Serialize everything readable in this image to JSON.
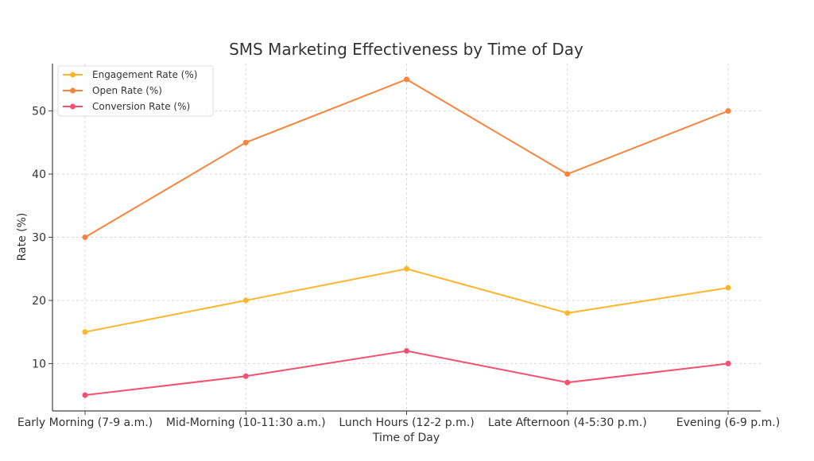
{
  "chart_data": {
    "type": "line",
    "title": "SMS Marketing Effectiveness by Time of Day",
    "xlabel": "Time of Day",
    "ylabel": "Rate (%)",
    "categories": [
      "Early Morning (7-9 a.m.)",
      "Mid-Morning (10-11:30 a.m.)",
      "Lunch Hours (12-2 p.m.)",
      "Late Afternoon (4-5:30 p.m.)",
      "Evening (6-9 p.m.)"
    ],
    "series": [
      {
        "name": "Engagement Rate (%)",
        "color": "#FDB52B",
        "values": [
          15,
          20,
          25,
          18,
          22
        ]
      },
      {
        "name": "Open Rate (%)",
        "color": "#F7843C",
        "values": [
          30,
          45,
          55,
          40,
          50
        ]
      },
      {
        "name": "Conversion Rate (%)",
        "color": "#F5506F",
        "values": [
          5,
          8,
          12,
          7,
          10
        ]
      }
    ],
    "yticks": [
      10,
      20,
      30,
      40,
      50
    ],
    "ylim": [
      2.5,
      57.5
    ],
    "grid": true,
    "legend": "top-left"
  }
}
